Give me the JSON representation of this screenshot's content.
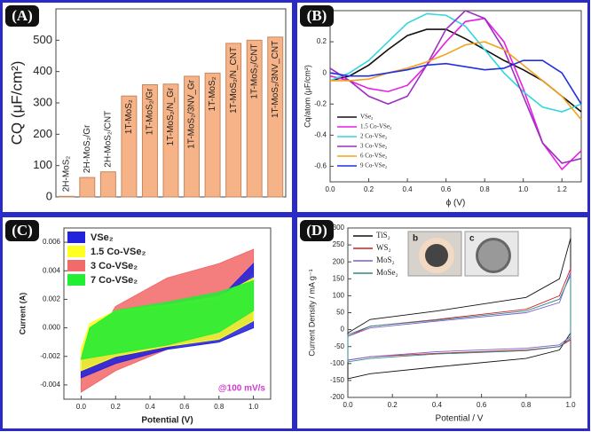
{
  "chart_data": [
    {
      "type": "bar",
      "panel_label": "(A)",
      "ylabel": "CQ (μF/cm²)",
      "categories": [
        "2H-MoS₂",
        "2H-MoS₂/Gr",
        "2H-MoS₂/CNT",
        "1T-MoS₂",
        "1T-MoS₂/Gr",
        "1T-MoS₂/N_Gr",
        "1T-MoS₂/3NV_Gr",
        "1T-MoS₂",
        "1T-MoS₂/N_CNT",
        "1T-MoS₂/CNT",
        "1T-MoS₂/3NV_CNT"
      ],
      "values": [
        2,
        62,
        80,
        322,
        358,
        360,
        385,
        395,
        490,
        500,
        510
      ],
      "color": "#f5b387",
      "ylim": [
        0,
        600
      ],
      "yticks": [
        0,
        100,
        200,
        300,
        400,
        500
      ]
    },
    {
      "type": "line",
      "panel_label": "(B)",
      "xlabel": "ϕ (V)",
      "ylabel": "Cq/atom (μF/cm²)",
      "x": [
        0,
        0.1,
        0.2,
        0.3,
        0.4,
        0.5,
        0.6,
        0.7,
        0.8,
        0.9,
        1.0,
        1.1,
        1.2,
        1.3
      ],
      "series": [
        {
          "name": "VSe₂",
          "color": "#111111",
          "values": [
            -0.05,
            -0.02,
            0.05,
            0.15,
            0.24,
            0.28,
            0.28,
            0.22,
            0.15,
            0.08,
            0.02,
            -0.05,
            -0.15,
            -0.25
          ]
        },
        {
          "name": "1.5 Co-VSe₂",
          "color": "#e81ee8",
          "values": [
            -0.02,
            -0.05,
            -0.1,
            -0.12,
            -0.08,
            0.05,
            0.2,
            0.33,
            0.35,
            0.2,
            -0.1,
            -0.45,
            -0.62,
            -0.5
          ]
        },
        {
          "name": "2 Co-VSe₂",
          "color": "#33d6e0",
          "values": [
            -0.05,
            0,
            0.08,
            0.2,
            0.32,
            0.38,
            0.37,
            0.3,
            0.15,
            0,
            -0.12,
            -0.22,
            -0.25,
            -0.2
          ]
        },
        {
          "name": "3 Co-VSe₂",
          "color": "#9a2fc0",
          "values": [
            0.03,
            -0.05,
            -0.15,
            -0.2,
            -0.15,
            0.05,
            0.28,
            0.4,
            0.35,
            0.15,
            -0.15,
            -0.45,
            -0.58,
            -0.55
          ]
        },
        {
          "name": "6 Co-VSe₂",
          "color": "#f5a31c",
          "values": [
            -0.05,
            -0.05,
            -0.04,
            0,
            0.03,
            0.07,
            0.12,
            0.18,
            0.2,
            0.15,
            0.05,
            -0.05,
            -0.15,
            -0.3
          ]
        },
        {
          "name": "9 Co-VSe₂",
          "color": "#2030e0",
          "values": [
            0,
            -0.02,
            -0.02,
            0,
            0.02,
            0.05,
            0.06,
            0.04,
            0.02,
            0.03,
            0.08,
            0.08,
            0,
            -0.2
          ]
        }
      ],
      "xlim": [
        0,
        1.3
      ],
      "xticks": [
        {
          "value": 0,
          "label": "0.0"
        },
        0.2,
        0.4,
        0.6,
        0.8,
        {
          "value": 1,
          "label": "1.0"
        },
        1.2
      ],
      "ylim": [
        -0.7,
        0.4
      ],
      "yticks": [
        -0.6,
        -0.4,
        -0.2,
        0,
        0.2
      ],
      "legend": "lower left"
    },
    {
      "type": "area",
      "panel_label": "(C)",
      "xlabel": "Potential (V)",
      "ylabel": "Current (A)",
      "annotation": "@100 mV/s",
      "series": [
        {
          "name": "VSe₂",
          "color": "#2222dd",
          "x": [
            0,
            0.05,
            0.2,
            0.5,
            0.8,
            1.0,
            1.0,
            0.8,
            0.5,
            0.2,
            0
          ],
          "values": [
            -0.002,
            0,
            0.001,
            0.0015,
            0.002,
            0.0045,
            0,
            -0.001,
            -0.0015,
            -0.0025,
            -0.0035
          ]
        },
        {
          "name": "1.5 Co-VSe₂",
          "color": "#ffff22",
          "x": [
            0,
            0.05,
            0.2,
            0.5,
            0.8,
            1.0,
            1.0,
            0.8,
            0.5,
            0.2,
            0
          ],
          "values": [
            -0.0015,
            0.0003,
            0.0012,
            0.0016,
            0.0022,
            0.0035,
            0.0005,
            -0.0008,
            -0.0013,
            -0.002,
            -0.003
          ]
        },
        {
          "name": "3 Co-VSe₂",
          "color": "#f26b6b",
          "x": [
            0,
            0.2,
            0.5,
            0.8,
            1.0,
            1.0,
            0.8,
            0.5,
            0.2,
            0
          ],
          "values": [
            -0.0025,
            0.0015,
            0.0035,
            0.0045,
            0.0055,
            0.004,
            0,
            -0.0015,
            -0.003,
            -0.0045
          ]
        },
        {
          "name": "7 Co-VSe₂",
          "color": "#22ee33",
          "x": [
            0,
            0.05,
            0.2,
            0.5,
            0.8,
            1.0,
            1.0,
            0.8,
            0.5,
            0.2,
            0
          ],
          "values": [
            -0.0022,
            0,
            0.0012,
            0.0018,
            0.0025,
            0.0033,
            0.0012,
            -0.0003,
            -0.0012,
            -0.0018,
            -0.0022
          ]
        }
      ],
      "draw_order": [
        2,
        0,
        1,
        3
      ],
      "xlim": [
        -0.1,
        1.1
      ],
      "xticks": [
        {
          "value": 0,
          "label": "0.0"
        },
        0.2,
        0.4,
        0.6,
        0.8,
        {
          "value": 1,
          "label": "1.0"
        }
      ],
      "ylim": [
        -0.005,
        0.007
      ],
      "yticks": [
        -0.004,
        -0.002,
        {
          "value": 0,
          "label": "0.000"
        },
        0.002,
        0.004,
        0.006
      ]
    },
    {
      "type": "line",
      "panel_label": "(D)",
      "xlabel": "Potential / V",
      "ylabel": "Current Density / mA g⁻¹",
      "annotations": [
        "b",
        "c"
      ],
      "series": [
        {
          "name": "TiS₂",
          "color": "#111111",
          "x": [
            0,
            0.1,
            0.4,
            0.8,
            0.95,
            1.0,
            1.0,
            0.95,
            0.8,
            0.4,
            0.1,
            0
          ],
          "values": [
            -10,
            30,
            55,
            95,
            150,
            270,
            -10,
            -60,
            -85,
            -110,
            -130,
            -145
          ]
        },
        {
          "name": "WS₂",
          "color": "#d02020",
          "x": [
            0,
            0.1,
            0.4,
            0.8,
            0.95,
            1.0,
            1.0,
            0.95,
            0.8,
            0.4,
            0.1,
            0
          ],
          "values": [
            -20,
            10,
            30,
            60,
            100,
            180,
            -30,
            -50,
            -60,
            -70,
            -80,
            -90
          ]
        },
        {
          "name": "MoS₂",
          "color": "#7a5bd0",
          "x": [
            0,
            0.1,
            0.4,
            0.8,
            0.95,
            1.0,
            1.0,
            0.95,
            0.8,
            0.4,
            0.1,
            0
          ],
          "values": [
            -20,
            5,
            25,
            50,
            80,
            170,
            -20,
            -45,
            -55,
            -65,
            -80,
            -90
          ]
        },
        {
          "name": "MoSe₂",
          "color": "#2a8a8a",
          "x": [
            0,
            0.1,
            0.4,
            0.8,
            0.95,
            1.0,
            1.0,
            0.95,
            0.8,
            0.4,
            0.1,
            0
          ],
          "values": [
            -15,
            10,
            28,
            55,
            90,
            160,
            -25,
            -50,
            -62,
            -72,
            -85,
            -95
          ]
        }
      ],
      "xlim": [
        0,
        1
      ],
      "xticks": [
        {
          "value": 0,
          "label": "0.0"
        },
        0.2,
        0.4,
        0.6,
        0.8,
        {
          "value": 1,
          "label": "1.0"
        }
      ],
      "ylim": [
        -200,
        300
      ],
      "yticks": [
        -200,
        -150,
        -100,
        -50,
        0,
        50,
        100,
        150,
        200,
        250,
        300
      ]
    }
  ]
}
